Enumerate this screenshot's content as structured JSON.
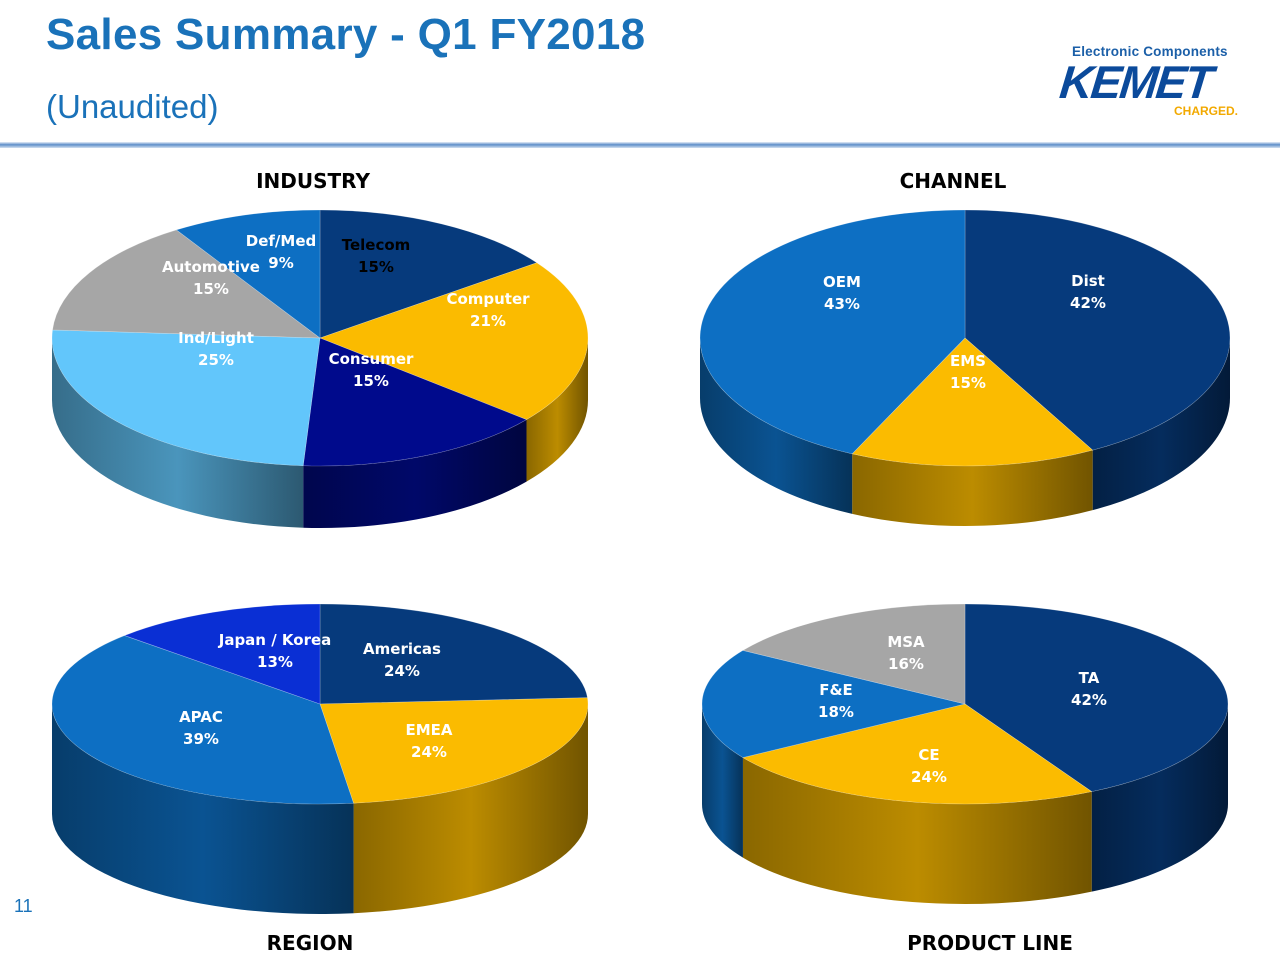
{
  "header": {
    "title": "Sales Summary - Q1 FY2018",
    "subtitle": "(Unaudited)"
  },
  "logo": {
    "tagline": "Electronic Components",
    "wordmark": "KEMET",
    "charged": "CHARGED."
  },
  "page_number": "11",
  "colors": {
    "navy": "#063a7c",
    "deep_blue": "#000a8c",
    "royal_blue": "#0a2fd4",
    "medium_blue": "#0d6fc3",
    "light_blue": "#62c6fb",
    "gold": "#fbbb00",
    "gray": "#a6a6a6",
    "title_blue": "#1a72b9"
  },
  "chart_data": [
    {
      "type": "pie",
      "title": "INDUSTRY",
      "slices": [
        {
          "name": "Telecom",
          "value": 15,
          "label": "15%",
          "color": "#063a7c",
          "text_color": "#000000"
        },
        {
          "name": "Computer",
          "value": 21,
          "label": "21%",
          "color": "#fbbb00",
          "text_color": "#ffffff"
        },
        {
          "name": "Consumer",
          "value": 15,
          "label": "15%",
          "color": "#000a8c",
          "text_color": "#ffffff"
        },
        {
          "name": "Ind/Light",
          "value": 25,
          "label": "25%",
          "color": "#62c6fb",
          "text_color": "#ffffff"
        },
        {
          "name": "Automotive",
          "value": 15,
          "label": "15%",
          "color": "#a6a6a6",
          "text_color": "#ffffff"
        },
        {
          "name": "Def/Med",
          "value": 9,
          "label": "9%",
          "color": "#0d6fc3",
          "text_color": "#ffffff"
        }
      ]
    },
    {
      "type": "pie",
      "title": "CHANNEL",
      "slices": [
        {
          "name": "Dist",
          "value": 42,
          "label": "42%",
          "color": "#063a7c",
          "text_color": "#ffffff"
        },
        {
          "name": "EMS",
          "value": 15,
          "label": "15%",
          "color": "#fbbb00",
          "text_color": "#ffffff"
        },
        {
          "name": "OEM",
          "value": 43,
          "label": "43%",
          "color": "#0d6fc3",
          "text_color": "#ffffff"
        }
      ]
    },
    {
      "type": "pie",
      "title": "REGION",
      "slices": [
        {
          "name": "Americas",
          "value": 24,
          "label": "24%",
          "color": "#063a7c",
          "text_color": "#ffffff"
        },
        {
          "name": "EMEA",
          "value": 24,
          "label": "24%",
          "color": "#fbbb00",
          "text_color": "#ffffff"
        },
        {
          "name": "APAC",
          "value": 39,
          "label": "39%",
          "color": "#0d6fc3",
          "text_color": "#ffffff"
        },
        {
          "name": "Japan / Korea",
          "value": 13,
          "label": "13%",
          "color": "#0a2fd4",
          "text_color": "#ffffff"
        }
      ]
    },
    {
      "type": "pie",
      "title": "PRODUCT LINE",
      "slices": [
        {
          "name": "TA",
          "value": 42,
          "label": "42%",
          "color": "#063a7c",
          "text_color": "#ffffff"
        },
        {
          "name": "CE",
          "value": 24,
          "label": "24%",
          "color": "#fbbb00",
          "text_color": "#ffffff"
        },
        {
          "name": "F&E",
          "value": 18,
          "label": "18%",
          "color": "#0d6fc3",
          "text_color": "#ffffff"
        },
        {
          "name": "MSA",
          "value": 16,
          "label": "16%",
          "color": "#a6a6a6",
          "text_color": "#ffffff"
        }
      ]
    }
  ]
}
